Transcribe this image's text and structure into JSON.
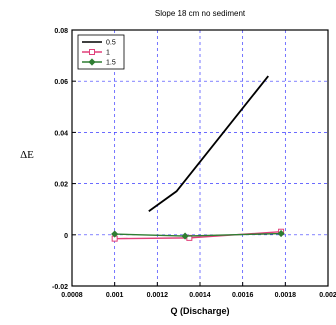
{
  "chart_data": {
    "type": "line",
    "title": "Slope 18 cm no sediment",
    "xlabel": "Q (Discharge)",
    "ylabel": "ΔE",
    "xlim": [
      0.0008,
      0.002
    ],
    "ylim": [
      -0.02,
      0.08
    ],
    "x_ticks": [
      0.0008,
      0.001,
      0.0012,
      0.0014,
      0.0016,
      0.0018,
      0.002
    ],
    "x_tick_labels": [
      "0.0008",
      "0.001",
      "0.0012",
      "0.0014",
      "0.0016",
      "0.0018",
      "0.002"
    ],
    "y_ticks": [
      -0.02,
      0,
      0.02,
      0.04,
      0.06,
      0.08
    ],
    "y_tick_labels": [
      "-0.02",
      "0",
      "0.02",
      "0.04",
      "0.06",
      "0.08"
    ],
    "grid": true,
    "legend_position": "top-left",
    "series": [
      {
        "name": "0.5",
        "color": "#000000",
        "marker": "none",
        "x": [
          0.00116,
          0.00129,
          0.00172
        ],
        "y": [
          0.0092,
          0.017,
          0.062
        ]
      },
      {
        "name": "1",
        "color": "#e0407a",
        "marker": "square",
        "x": [
          0.001,
          0.00135,
          0.00178
        ],
        "y": [
          -0.0015,
          -0.0012,
          0.0012
        ]
      },
      {
        "name": "1.5",
        "color": "#2e7d32",
        "marker": "diamond",
        "x": [
          0.001,
          0.00133,
          0.00178
        ],
        "y": [
          0.0003,
          -0.0005,
          0.0005
        ]
      }
    ]
  }
}
